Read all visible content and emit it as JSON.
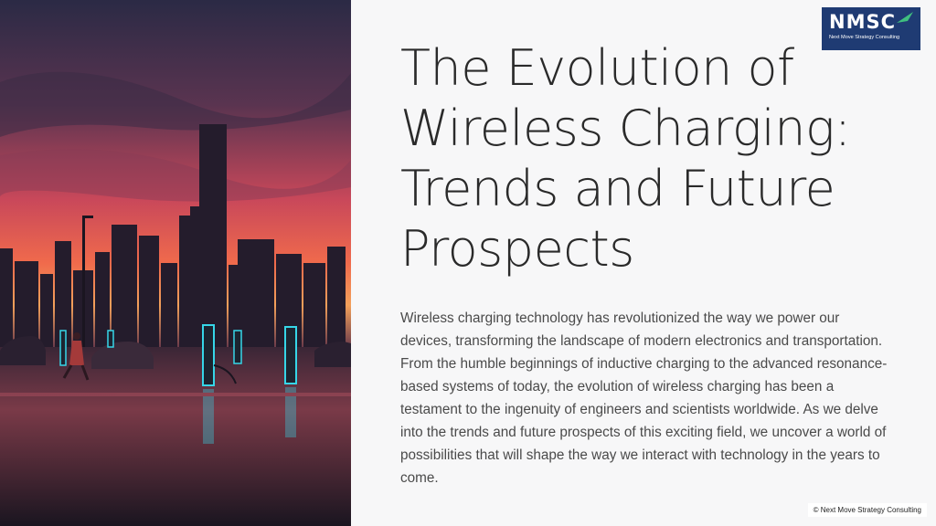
{
  "slide": {
    "title_lines": [
      "The Evolution of",
      "Wireless Charging:",
      "Trends and Future",
      "Prospects"
    ],
    "body": "Wireless charging technology has revolutionized the way we power our devices, transforming the landscape of modern electronics and transportation. From the humble beginnings of inductive charging to the advanced resonance-based systems of today, the evolution of wireless charging has been a testament to the ingenuity of engineers and scientists worldwide. As we delve into the trends and future prospects of this exciting field, we uncover a world of possibilities that will shape the way we interact with technology in the years to come."
  },
  "logo": {
    "mark": "NMSC",
    "tagline": "Next Move Strategy Consulting"
  },
  "footer": {
    "copyright": "© Next Move Strategy Consulting"
  },
  "colors": {
    "logo_bg": "#1f3b73",
    "accent_arrow": "#3fbf7f",
    "glow": "#36d6e8",
    "title": "#2a2a2a"
  }
}
